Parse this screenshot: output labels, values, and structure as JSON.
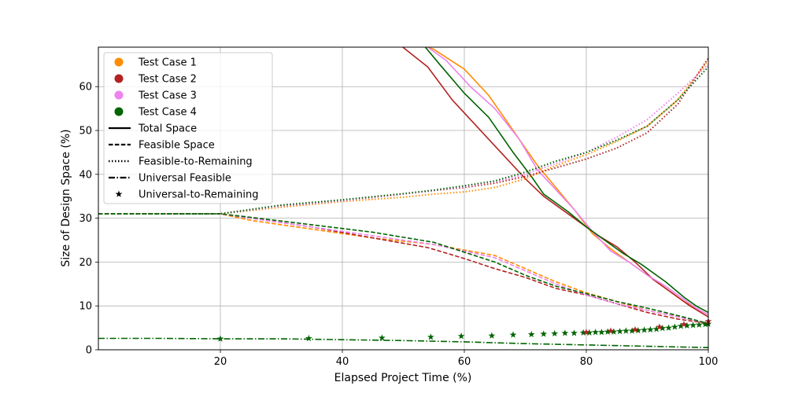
{
  "chart_data": {
    "type": "line",
    "xlabel": "Elapsed Project Time (%)",
    "ylabel": "Size of Design Space (%)",
    "xlim": [
      0,
      100
    ],
    "ylim": [
      0,
      69
    ],
    "xticks": [
      20,
      40,
      60,
      80,
      100
    ],
    "yticks": [
      0,
      10,
      20,
      30,
      40,
      50,
      60
    ],
    "grid": true,
    "legend_position": "top-left",
    "cases": [
      {
        "name": "Test Case 1",
        "color": "#ff8c00"
      },
      {
        "name": "Test Case 2",
        "color": "#b22222"
      },
      {
        "name": "Test Case 3",
        "color": "#ee82ee"
      },
      {
        "name": "Test Case 4",
        "color": "#006400"
      }
    ],
    "styles": [
      {
        "name": "Total Space",
        "dash": "solid"
      },
      {
        "name": "Feasible Space",
        "dash": "dashed"
      },
      {
        "name": "Feasible-to-Remaining",
        "dash": "dotted"
      },
      {
        "name": "Universal Feasible",
        "dash": "dashdot"
      },
      {
        "name": "Universal-to-Remaining",
        "dash": "star"
      }
    ],
    "series": [
      {
        "case": 0,
        "style": 0,
        "x": [
          52,
          55,
          60,
          64,
          68,
          72,
          75,
          78,
          81,
          84,
          87,
          90,
          93,
          96,
          98,
          100
        ],
        "y": [
          70,
          68.5,
          64,
          58,
          50,
          42,
          37,
          32,
          26.5,
          23,
          20,
          17,
          14,
          11,
          9.5,
          8
        ]
      },
      {
        "case": 1,
        "style": 0,
        "x": [
          49,
          54,
          58,
          62,
          66,
          70,
          73,
          76,
          79,
          82,
          85,
          88,
          91,
          94,
          97,
          100
        ],
        "y": [
          70,
          64.5,
          57,
          51,
          45,
          39,
          35,
          32,
          29,
          26,
          23.5,
          20,
          16,
          13,
          10,
          7.5
        ]
      },
      {
        "case": 2,
        "style": 0,
        "x": [
          53,
          57,
          61,
          65,
          69,
          72,
          75,
          78,
          81,
          84,
          87,
          90,
          93,
          96,
          98,
          100
        ],
        "y": [
          70,
          66,
          60,
          55,
          48,
          41,
          36.5,
          32,
          27,
          22.5,
          20,
          17,
          14.5,
          11.5,
          9.5,
          8
        ]
      },
      {
        "case": 3,
        "style": 0,
        "x": [
          53,
          56,
          60,
          64,
          68,
          71,
          73,
          77,
          80,
          83,
          86,
          89,
          93,
          96,
          98,
          100
        ],
        "y": [
          70,
          65,
          58.5,
          53,
          45,
          39.5,
          35.5,
          31.5,
          28,
          25,
          22,
          19.5,
          15.5,
          12,
          10,
          8.5
        ]
      },
      {
        "case": 0,
        "style": 1,
        "x": [
          0,
          20,
          25,
          35,
          45,
          55,
          65,
          70,
          75,
          80,
          85,
          90,
          95,
          100
        ],
        "y": [
          31,
          31,
          29.5,
          27.5,
          25.5,
          24,
          21.5,
          18.5,
          15.5,
          13,
          11,
          9,
          7.5,
          6
        ]
      },
      {
        "case": 1,
        "style": 1,
        "x": [
          0,
          20,
          25,
          35,
          45,
          54,
          60,
          65,
          70,
          75,
          80,
          85,
          90,
          95,
          100
        ],
        "y": [
          31,
          31,
          30,
          28,
          25.5,
          23.3,
          20.8,
          18.5,
          16.5,
          14,
          12.5,
          10.5,
          8.5,
          7,
          6
        ]
      },
      {
        "case": 2,
        "style": 1,
        "x": [
          0,
          20,
          25,
          35,
          45,
          55,
          65,
          70,
          75,
          80,
          85,
          90,
          95,
          100
        ],
        "y": [
          31,
          31,
          30,
          28,
          26,
          24,
          21,
          18,
          15,
          12.5,
          10.5,
          9,
          7.5,
          6
        ]
      },
      {
        "case": 3,
        "style": 1,
        "x": [
          0,
          20,
          25,
          35,
          45,
          55,
          65,
          70,
          75,
          80,
          85,
          90,
          95,
          100
        ],
        "y": [
          31,
          31,
          30.2,
          28.5,
          26.8,
          24.5,
          20,
          17,
          14.5,
          12.8,
          11,
          9.5,
          7.8,
          6
        ]
      },
      {
        "case": 0,
        "style": 2,
        "x": [
          0,
          20,
          30,
          40,
          50,
          55,
          60,
          65,
          70,
          75,
          80,
          85,
          90,
          95,
          100
        ],
        "y": [
          31,
          31,
          32.5,
          33.8,
          34.8,
          35.5,
          36,
          37,
          39,
          42,
          44.5,
          47.5,
          51,
          57,
          66
        ]
      },
      {
        "case": 1,
        "style": 2,
        "x": [
          0,
          20,
          30,
          40,
          50,
          55,
          60,
          65,
          70,
          75,
          80,
          85,
          90,
          95,
          100
        ],
        "y": [
          31,
          31,
          32.8,
          34,
          35.5,
          36.3,
          37,
          38,
          39.5,
          41.5,
          43.5,
          46,
          49.5,
          56,
          66.5
        ]
      },
      {
        "case": 2,
        "style": 2,
        "x": [
          0,
          20,
          30,
          40,
          50,
          55,
          60,
          65,
          70,
          75,
          80,
          85,
          90,
          95,
          100
        ],
        "y": [
          31,
          31,
          32.8,
          34,
          35.5,
          36.3,
          37.2,
          38.3,
          40,
          42.5,
          45,
          48.5,
          52.5,
          58.5,
          65
        ]
      },
      {
        "case": 3,
        "style": 2,
        "x": [
          0,
          20,
          30,
          40,
          50,
          55,
          60,
          65,
          70,
          75,
          80,
          85,
          90,
          95,
          100
        ],
        "y": [
          31,
          31,
          33,
          34.2,
          35.6,
          36.4,
          37.4,
          38.5,
          40.5,
          43,
          45,
          47.8,
          51,
          57,
          64.5
        ]
      },
      {
        "case": 3,
        "style": 3,
        "x": [
          0,
          10,
          20,
          30,
          40,
          50,
          60,
          70,
          80,
          90,
          100
        ],
        "y": [
          2.6,
          2.6,
          2.5,
          2.5,
          2.3,
          2.1,
          1.8,
          1.4,
          1.1,
          0.8,
          0.5
        ]
      },
      {
        "case": 3,
        "style": 4,
        "x": [
          20,
          34.5,
          46.5,
          54.5,
          59.5,
          64.5,
          68,
          71,
          73,
          74.8,
          76.5,
          78,
          79.5,
          80.5,
          81.5,
          82.5,
          83.5,
          84.5,
          85.5,
          86.5,
          87.5,
          88.5,
          89.5,
          90.5,
          91.5,
          92.5,
          93.5,
          94.5,
          95.5,
          96.5,
          97.5,
          98.5,
          99.5,
          100
        ],
        "y": [
          2.5,
          2.6,
          2.7,
          2.9,
          3.1,
          3.2,
          3.4,
          3.5,
          3.6,
          3.7,
          3.8,
          3.8,
          3.9,
          3.9,
          4.0,
          4.0,
          4.1,
          4.1,
          4.2,
          4.3,
          4.3,
          4.4,
          4.5,
          4.6,
          4.7,
          4.9,
          5.0,
          5.2,
          5.4,
          5.5,
          5.6,
          5.7,
          5.8,
          5.9
        ]
      },
      {
        "case": 1,
        "style": 4,
        "x": [
          80,
          84,
          88,
          92,
          96,
          100
        ],
        "y": [
          4.0,
          4.3,
          4.6,
          5.2,
          5.8,
          6.5
        ]
      }
    ]
  }
}
